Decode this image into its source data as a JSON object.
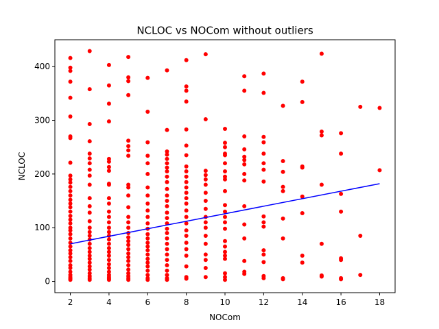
{
  "chart_data": {
    "type": "scatter",
    "title": "NCLOC vs NOCom without outliers",
    "xlabel": "NOCom",
    "ylabel": "NCLOC",
    "xlim": [
      1.2,
      18.8
    ],
    "ylim": [
      -21,
      450
    ],
    "xticks": [
      2,
      4,
      6,
      8,
      10,
      12,
      14,
      16,
      18
    ],
    "yticks": [
      0,
      100,
      200,
      300,
      400
    ],
    "grid": false,
    "legend": "none",
    "point_color": "#ff0000",
    "line_color": "#0000ff",
    "trend_line": {
      "x": [
        2,
        18
      ],
      "y": [
        70,
        182
      ]
    },
    "points": [
      [
        2,
        416
      ],
      [
        2,
        398
      ],
      [
        2,
        392
      ],
      [
        2,
        372
      ],
      [
        2,
        342
      ],
      [
        2,
        307
      ],
      [
        2,
        270
      ],
      [
        2,
        267
      ],
      [
        2,
        221
      ],
      [
        2,
        197
      ],
      [
        2,
        190
      ],
      [
        2,
        184
      ],
      [
        2,
        176
      ],
      [
        2,
        168
      ],
      [
        2,
        160
      ],
      [
        2,
        152
      ],
      [
        2,
        145
      ],
      [
        2,
        138
      ],
      [
        2,
        130
      ],
      [
        2,
        122
      ],
      [
        2,
        115
      ],
      [
        2,
        108
      ],
      [
        2,
        100
      ],
      [
        2,
        95
      ],
      [
        2,
        88
      ],
      [
        2,
        80
      ],
      [
        2,
        72
      ],
      [
        2,
        65
      ],
      [
        2,
        58
      ],
      [
        2,
        52
      ],
      [
        2,
        45
      ],
      [
        2,
        38
      ],
      [
        2,
        30
      ],
      [
        2,
        25
      ],
      [
        2,
        18
      ],
      [
        2,
        12
      ],
      [
        2,
        8
      ],
      [
        2,
        5
      ],
      [
        2,
        3
      ],
      [
        3,
        429
      ],
      [
        3,
        358
      ],
      [
        3,
        293
      ],
      [
        3,
        261
      ],
      [
        3,
        238
      ],
      [
        3,
        229
      ],
      [
        3,
        220
      ],
      [
        3,
        208
      ],
      [
        3,
        197
      ],
      [
        3,
        180
      ],
      [
        3,
        155
      ],
      [
        3,
        140
      ],
      [
        3,
        128
      ],
      [
        3,
        112
      ],
      [
        3,
        100
      ],
      [
        3,
        92
      ],
      [
        3,
        85
      ],
      [
        3,
        78
      ],
      [
        3,
        70
      ],
      [
        3,
        62
      ],
      [
        3,
        55
      ],
      [
        3,
        48
      ],
      [
        3,
        42
      ],
      [
        3,
        35
      ],
      [
        3,
        28
      ],
      [
        3,
        22
      ],
      [
        3,
        15
      ],
      [
        3,
        10
      ],
      [
        3,
        6
      ],
      [
        3,
        3
      ],
      [
        4,
        403
      ],
      [
        4,
        365
      ],
      [
        4,
        331
      ],
      [
        4,
        298
      ],
      [
        4,
        228
      ],
      [
        4,
        223
      ],
      [
        4,
        213
      ],
      [
        4,
        206
      ],
      [
        4,
        182
      ],
      [
        4,
        180
      ],
      [
        4,
        155
      ],
      [
        4,
        145
      ],
      [
        4,
        130
      ],
      [
        4,
        120
      ],
      [
        4,
        110
      ],
      [
        4,
        100
      ],
      [
        4,
        92
      ],
      [
        4,
        85
      ],
      [
        4,
        78
      ],
      [
        4,
        70
      ],
      [
        4,
        62
      ],
      [
        4,
        55
      ],
      [
        4,
        48
      ],
      [
        4,
        40
      ],
      [
        4,
        32
      ],
      [
        4,
        25
      ],
      [
        4,
        18
      ],
      [
        4,
        12
      ],
      [
        4,
        8
      ],
      [
        4,
        5
      ],
      [
        4,
        3
      ],
      [
        5,
        418
      ],
      [
        5,
        380
      ],
      [
        5,
        373
      ],
      [
        5,
        347
      ],
      [
        5,
        262
      ],
      [
        5,
        252
      ],
      [
        5,
        244
      ],
      [
        5,
        234
      ],
      [
        5,
        180
      ],
      [
        5,
        175
      ],
      [
        5,
        160
      ],
      [
        5,
        138
      ],
      [
        5,
        120
      ],
      [
        5,
        110
      ],
      [
        5,
        100
      ],
      [
        5,
        90
      ],
      [
        5,
        82
      ],
      [
        5,
        75
      ],
      [
        5,
        68
      ],
      [
        5,
        60
      ],
      [
        5,
        52
      ],
      [
        5,
        45
      ],
      [
        5,
        38
      ],
      [
        5,
        30
      ],
      [
        5,
        22
      ],
      [
        5,
        15
      ],
      [
        5,
        10
      ],
      [
        5,
        6
      ],
      [
        5,
        3
      ],
      [
        6,
        379
      ],
      [
        6,
        316
      ],
      [
        6,
        259
      ],
      [
        6,
        234
      ],
      [
        6,
        220
      ],
      [
        6,
        200
      ],
      [
        6,
        175
      ],
      [
        6,
        160
      ],
      [
        6,
        145
      ],
      [
        6,
        132
      ],
      [
        6,
        120
      ],
      [
        6,
        108
      ],
      [
        6,
        98
      ],
      [
        6,
        88
      ],
      [
        6,
        80
      ],
      [
        6,
        72
      ],
      [
        6,
        65
      ],
      [
        6,
        58
      ],
      [
        6,
        50
      ],
      [
        6,
        42
      ],
      [
        6,
        35
      ],
      [
        6,
        28
      ],
      [
        6,
        20
      ],
      [
        6,
        12
      ],
      [
        6,
        6
      ],
      [
        6,
        3
      ],
      [
        7,
        393
      ],
      [
        7,
        282
      ],
      [
        7,
        242
      ],
      [
        7,
        236
      ],
      [
        7,
        228
      ],
      [
        7,
        220
      ],
      [
        7,
        212
      ],
      [
        7,
        205
      ],
      [
        7,
        195
      ],
      [
        7,
        185
      ],
      [
        7,
        172
      ],
      [
        7,
        160
      ],
      [
        7,
        150
      ],
      [
        7,
        140
      ],
      [
        7,
        128
      ],
      [
        7,
        118
      ],
      [
        7,
        108
      ],
      [
        7,
        98
      ],
      [
        7,
        90
      ],
      [
        7,
        80
      ],
      [
        7,
        70
      ],
      [
        7,
        60
      ],
      [
        7,
        50
      ],
      [
        7,
        40
      ],
      [
        7,
        30
      ],
      [
        7,
        20
      ],
      [
        7,
        12
      ],
      [
        7,
        6
      ],
      [
        7,
        3
      ],
      [
        8,
        412
      ],
      [
        8,
        363
      ],
      [
        8,
        355
      ],
      [
        8,
        335
      ],
      [
        8,
        283
      ],
      [
        8,
        253
      ],
      [
        8,
        235
      ],
      [
        8,
        214
      ],
      [
        8,
        205
      ],
      [
        8,
        195
      ],
      [
        8,
        185
      ],
      [
        8,
        175
      ],
      [
        8,
        165
      ],
      [
        8,
        155
      ],
      [
        8,
        145
      ],
      [
        8,
        132
      ],
      [
        8,
        120
      ],
      [
        8,
        108
      ],
      [
        8,
        95
      ],
      [
        8,
        85
      ],
      [
        8,
        72
      ],
      [
        8,
        60
      ],
      [
        8,
        48
      ],
      [
        8,
        28
      ],
      [
        8,
        8
      ],
      [
        8,
        5
      ],
      [
        9,
        423
      ],
      [
        9,
        302
      ],
      [
        9,
        206
      ],
      [
        9,
        198
      ],
      [
        9,
        190
      ],
      [
        9,
        180
      ],
      [
        9,
        165
      ],
      [
        9,
        150
      ],
      [
        9,
        135
      ],
      [
        9,
        120
      ],
      [
        9,
        110
      ],
      [
        9,
        100
      ],
      [
        9,
        85
      ],
      [
        9,
        70
      ],
      [
        9,
        50
      ],
      [
        9,
        40
      ],
      [
        9,
        25
      ],
      [
        9,
        8
      ],
      [
        10,
        284
      ],
      [
        10,
        258
      ],
      [
        10,
        250
      ],
      [
        10,
        238
      ],
      [
        10,
        235
      ],
      [
        10,
        220
      ],
      [
        10,
        205
      ],
      [
        10,
        195
      ],
      [
        10,
        190
      ],
      [
        10,
        168
      ],
      [
        10,
        142
      ],
      [
        10,
        130
      ],
      [
        10,
        120
      ],
      [
        10,
        110
      ],
      [
        10,
        98
      ],
      [
        10,
        75
      ],
      [
        10,
        65
      ],
      [
        10,
        55
      ],
      [
        10,
        48
      ],
      [
        10,
        42
      ],
      [
        10,
        15
      ],
      [
        10,
        8
      ],
      [
        10,
        3
      ],
      [
        11,
        382
      ],
      [
        11,
        355
      ],
      [
        11,
        270
      ],
      [
        11,
        246
      ],
      [
        11,
        232
      ],
      [
        11,
        226
      ],
      [
        11,
        218
      ],
      [
        11,
        200
      ],
      [
        11,
        188
      ],
      [
        11,
        140
      ],
      [
        11,
        106
      ],
      [
        11,
        80
      ],
      [
        11,
        38
      ],
      [
        11,
        18
      ],
      [
        11,
        14
      ],
      [
        12,
        387
      ],
      [
        12,
        351
      ],
      [
        12,
        269
      ],
      [
        12,
        259
      ],
      [
        12,
        238
      ],
      [
        12,
        220
      ],
      [
        12,
        208
      ],
      [
        12,
        186
      ],
      [
        12,
        121
      ],
      [
        12,
        110
      ],
      [
        12,
        102
      ],
      [
        12,
        58
      ],
      [
        12,
        50
      ],
      [
        12,
        36
      ],
      [
        12,
        10
      ],
      [
        12,
        6
      ],
      [
        13,
        327
      ],
      [
        13,
        224
      ],
      [
        13,
        204
      ],
      [
        13,
        176
      ],
      [
        13,
        168
      ],
      [
        13,
        117
      ],
      [
        13,
        80
      ],
      [
        13,
        6
      ],
      [
        13,
        4
      ],
      [
        14,
        372
      ],
      [
        14,
        334
      ],
      [
        14,
        214
      ],
      [
        14,
        212
      ],
      [
        14,
        158
      ],
      [
        14,
        127
      ],
      [
        14,
        48
      ],
      [
        14,
        35
      ],
      [
        15,
        424
      ],
      [
        15,
        279
      ],
      [
        15,
        272
      ],
      [
        15,
        180
      ],
      [
        15,
        70
      ],
      [
        15,
        11
      ],
      [
        15,
        9
      ],
      [
        16,
        276
      ],
      [
        16,
        238
      ],
      [
        16,
        163
      ],
      [
        16,
        130
      ],
      [
        16,
        43
      ],
      [
        16,
        40
      ],
      [
        16,
        6
      ],
      [
        16,
        4
      ],
      [
        17,
        325
      ],
      [
        17,
        85
      ],
      [
        17,
        12
      ],
      [
        18,
        323
      ],
      [
        18,
        207
      ]
    ]
  }
}
